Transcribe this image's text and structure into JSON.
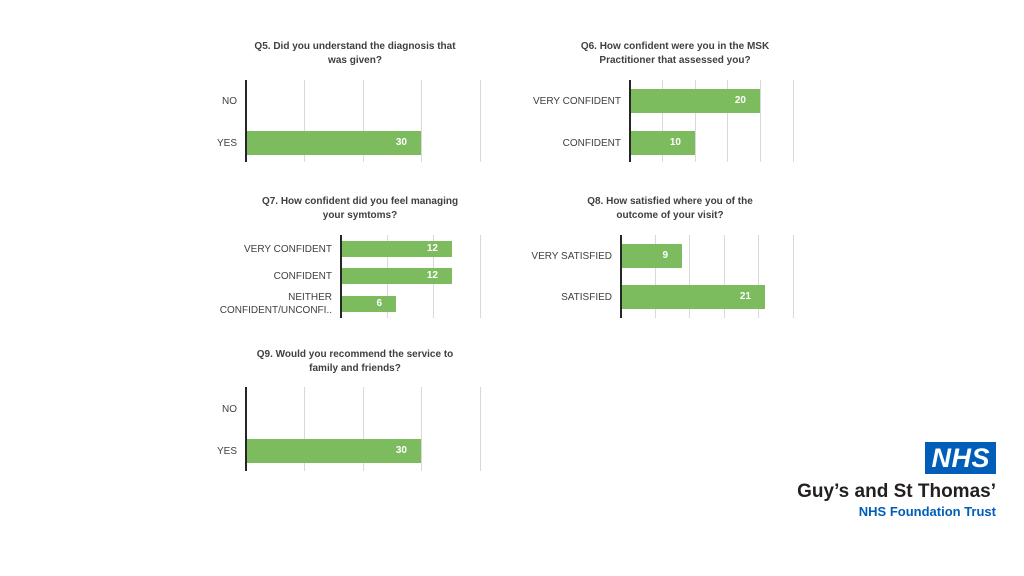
{
  "chart_data": [
    {
      "id": "q5",
      "type": "bar",
      "orientation": "horizontal",
      "title": "Q5.  Did you understand the diagnosis that\nwas given?",
      "categories": [
        "NO",
        "YES"
      ],
      "values": [
        0,
        30
      ],
      "xlim": [
        0,
        40
      ],
      "grid": true,
      "color": "#7dbb5f"
    },
    {
      "id": "q6",
      "type": "bar",
      "orientation": "horizontal",
      "title": "Q6.  How confident were you in the MSK\nPractitioner that assessed you?",
      "categories": [
        "VERY CONFIDENT",
        "CONFIDENT"
      ],
      "values": [
        20,
        10
      ],
      "xlim": [
        0,
        25
      ],
      "grid": true,
      "color": "#7dbb5f"
    },
    {
      "id": "q7",
      "type": "bar",
      "orientation": "horizontal",
      "title": "Q7.  How confident did you feel managing\nyour symtoms?",
      "categories": [
        "VERY CONFIDENT",
        "CONFIDENT",
        "NEITHER\nCONFIDENT/UNCONFI.."
      ],
      "values": [
        12,
        12,
        6
      ],
      "xlim": [
        0,
        15
      ],
      "grid": true,
      "color": "#7dbb5f"
    },
    {
      "id": "q8",
      "type": "bar",
      "orientation": "horizontal",
      "title": "Q8.  How satisfied where you of the\noutcome of your visit?",
      "categories": [
        "VERY SATISFIED",
        "SATISFIED"
      ],
      "values": [
        9,
        21
      ],
      "xlim": [
        0,
        25
      ],
      "grid": true,
      "color": "#7dbb5f"
    },
    {
      "id": "q9",
      "type": "bar",
      "orientation": "horizontal",
      "title": "Q9.  Would you recommend the service to\nfamily and friends?",
      "categories": [
        "NO",
        "YES"
      ],
      "values": [
        0,
        30
      ],
      "xlim": [
        0,
        40
      ],
      "grid": true,
      "color": "#7dbb5f"
    }
  ],
  "logo": {
    "badge": "NHS",
    "trust_name": "Guy’s and St Thomas’",
    "subtitle": "NHS Foundation Trust",
    "badge_color": "#005eb8"
  }
}
